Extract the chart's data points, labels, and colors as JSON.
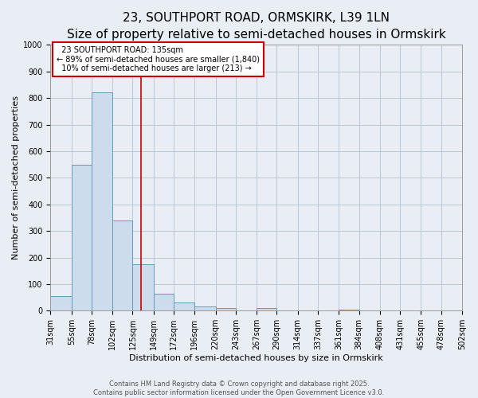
{
  "title_line1": "23, SOUTHPORT ROAD, ORMSKIRK, L39 1LN",
  "title_line2": "Size of property relative to semi-detached houses in Ormskirk",
  "xlabel": "Distribution of semi-detached houses by size in Ormskirk",
  "ylabel": "Number of semi-detached properties",
  "bin_edges": [
    31,
    55,
    78,
    102,
    125,
    149,
    172,
    196,
    220,
    243,
    267,
    290,
    314,
    337,
    361,
    384,
    408,
    431,
    455,
    478,
    502
  ],
  "bar_heights": [
    55,
    550,
    820,
    340,
    175,
    65,
    30,
    15,
    10,
    0,
    10,
    0,
    0,
    0,
    5,
    0,
    0,
    0,
    0,
    0
  ],
  "bar_color": "#ccdcec",
  "bar_edge_color": "#6699bb",
  "vline_x": 135,
  "vline_color": "#cc0000",
  "annotation_text": "  23 SOUTHPORT ROAD: 135sqm\n← 89% of semi-detached houses are smaller (1,840)\n  10% of semi-detached houses are larger (213) →",
  "annotation_box_color": "#cc0000",
  "ylim": [
    0,
    1000
  ],
  "yticks": [
    0,
    100,
    200,
    300,
    400,
    500,
    600,
    700,
    800,
    900,
    1000
  ],
  "tick_labels": [
    "31sqm",
    "55sqm",
    "78sqm",
    "102sqm",
    "125sqm",
    "149sqm",
    "172sqm",
    "196sqm",
    "220sqm",
    "243sqm",
    "267sqm",
    "290sqm",
    "314sqm",
    "337sqm",
    "361sqm",
    "384sqm",
    "408sqm",
    "431sqm",
    "455sqm",
    "478sqm",
    "502sqm"
  ],
  "footer_line1": "Contains HM Land Registry data © Crown copyright and database right 2025.",
  "footer_line2": "Contains public sector information licensed under the Open Government Licence v3.0.",
  "bg_color": "#e8eef4",
  "plot_bg_color": "#e8eef4",
  "grid_color": "#b8c8d8",
  "title1_fontsize": 11,
  "title2_fontsize": 9,
  "xlabel_fontsize": 8,
  "ylabel_fontsize": 8,
  "tick_fontsize": 7,
  "annotation_fontsize": 7,
  "footer_fontsize": 6
}
